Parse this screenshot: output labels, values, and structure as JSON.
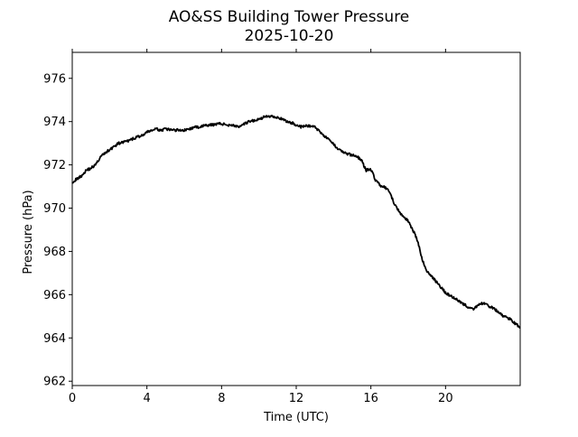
{
  "chart_data": {
    "type": "line",
    "title": "AO&SS Building Tower Pressure",
    "subtitle": "2025-10-20",
    "xlabel": "Time (UTC)",
    "ylabel": "Pressure (hPa)",
    "xlim": [
      0,
      24
    ],
    "ylim": [
      961.8,
      977.2
    ],
    "xticks": [
      0,
      4,
      8,
      12,
      16,
      20
    ],
    "yticks": [
      962,
      964,
      966,
      968,
      970,
      972,
      974,
      976
    ],
    "grid": false,
    "legend": "none",
    "line_color": "#000000",
    "series": [
      {
        "x": [
          0,
          0.25,
          0.5,
          0.75,
          1.0,
          1.25,
          1.5,
          1.75,
          2.0,
          2.25,
          2.5,
          2.75,
          3.0,
          3.25,
          3.5,
          3.75,
          4.0,
          4.25,
          4.5,
          4.75,
          5.0,
          5.25,
          5.5,
          5.75,
          6.0,
          6.25,
          6.5,
          6.75,
          7.0,
          7.25,
          7.5,
          7.75,
          8.0,
          8.25,
          8.5,
          8.75,
          9.0,
          9.25,
          9.5,
          9.75,
          10.0,
          10.25,
          10.5,
          10.75,
          11.0,
          11.25,
          11.5,
          11.75,
          12.0,
          12.25,
          12.5,
          12.75,
          13.0,
          13.25,
          13.5,
          13.75,
          14.0,
          14.25,
          14.5,
          14.75,
          15.0,
          15.25,
          15.5,
          15.75,
          16.0,
          16.25,
          16.5,
          16.75,
          17.0,
          17.25,
          17.5,
          17.75,
          18.0,
          18.25,
          18.5,
          18.75,
          19.0,
          19.25,
          19.5,
          19.75,
          20.0,
          20.25,
          20.5,
          20.75,
          21.0,
          21.25,
          21.5,
          21.75,
          22.0,
          22.25,
          22.5,
          22.75,
          23.0,
          23.25,
          23.5,
          23.75,
          24.0
        ],
        "values": [
          971.2,
          971.35,
          971.5,
          971.75,
          971.85,
          972.0,
          972.35,
          972.55,
          972.7,
          972.85,
          973.0,
          973.05,
          973.1,
          973.2,
          973.3,
          973.35,
          973.5,
          973.6,
          973.65,
          973.6,
          973.65,
          973.62,
          973.6,
          973.62,
          973.6,
          973.65,
          973.72,
          973.75,
          973.8,
          973.82,
          973.85,
          973.9,
          973.9,
          973.85,
          973.85,
          973.8,
          973.75,
          973.9,
          974.0,
          974.05,
          974.1,
          974.2,
          974.25,
          974.25,
          974.2,
          974.1,
          974.0,
          973.95,
          973.85,
          973.75,
          973.8,
          973.8,
          973.75,
          973.55,
          973.35,
          973.15,
          972.95,
          972.75,
          972.6,
          972.5,
          972.45,
          972.4,
          972.2,
          971.75,
          971.8,
          971.3,
          971.05,
          970.95,
          970.75,
          970.2,
          969.85,
          969.6,
          969.4,
          969.0,
          968.5,
          967.6,
          967.1,
          966.85,
          966.6,
          966.35,
          966.1,
          965.95,
          965.85,
          965.7,
          965.55,
          965.4,
          965.3,
          965.55,
          965.6,
          965.5,
          965.4,
          965.25,
          965.05,
          964.95,
          964.85,
          964.65,
          964.5
        ]
      }
    ]
  }
}
